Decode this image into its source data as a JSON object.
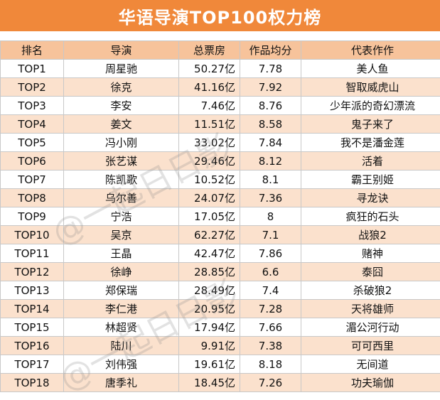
{
  "title": "华语导演TOP100权力榜",
  "colors": {
    "header_bar": "#f0883a",
    "table_header": "#f7c39b",
    "row_alt": "#fbe1cd"
  },
  "columns": [
    "排名",
    "导演",
    "总票房",
    "作品均分",
    "代表作作"
  ],
  "rows": [
    [
      "TOP1",
      "周星驰",
      "50.27亿",
      "7.78",
      "美人鱼"
    ],
    [
      "TOP2",
      "徐克",
      "41.16亿",
      "7.92",
      "智取威虎山"
    ],
    [
      "TOP3",
      "李安",
      "7.46亿",
      "8.76",
      "少年派的奇幻漂流"
    ],
    [
      "TOP4",
      "姜文",
      "11.51亿",
      "8.58",
      "鬼子来了"
    ],
    [
      "TOP5",
      "冯小刚",
      "33.02亿",
      "7.84",
      "我不是潘金莲"
    ],
    [
      "TOP6",
      "张艺谋",
      "29.46亿",
      "8.12",
      "活着"
    ],
    [
      "TOP7",
      "陈凯歌",
      "10.52亿",
      "8.1",
      "霸王别姬"
    ],
    [
      "TOP8",
      "乌尔善",
      "24.07亿",
      "7.36",
      "寻龙诀"
    ],
    [
      "TOP9",
      "宁浩",
      "17.05亿",
      "8",
      "疯狂的石头"
    ],
    [
      "TOP10",
      "吴京",
      "62.27亿",
      "7.1",
      "战狼2"
    ],
    [
      "TOP11",
      "王晶",
      "42.47亿",
      "7.86",
      "赌神"
    ],
    [
      "TOP12",
      "徐峥",
      "28.85亿",
      "6.6",
      "泰囧"
    ],
    [
      "TOP13",
      "郑保瑞",
      "28.49亿",
      "7.4",
      "杀破狼2"
    ],
    [
      "TOP14",
      "李仁港",
      "20.95亿",
      "7.28",
      "天将雄师"
    ],
    [
      "TOP15",
      "林超贤",
      "17.94亿",
      "7.66",
      "湄公河行动"
    ],
    [
      "TOP16",
      "陆川",
      "9.91亿",
      "7.38",
      "可可西里"
    ],
    [
      "TOP17",
      "刘伟强",
      "19.61亿",
      "8.18",
      "无间道"
    ],
    [
      "TOP18",
      "唐季礼",
      "18.45亿",
      "7.26",
      "功夫瑜伽"
    ]
  ],
  "watermark": "@一起日日影"
}
